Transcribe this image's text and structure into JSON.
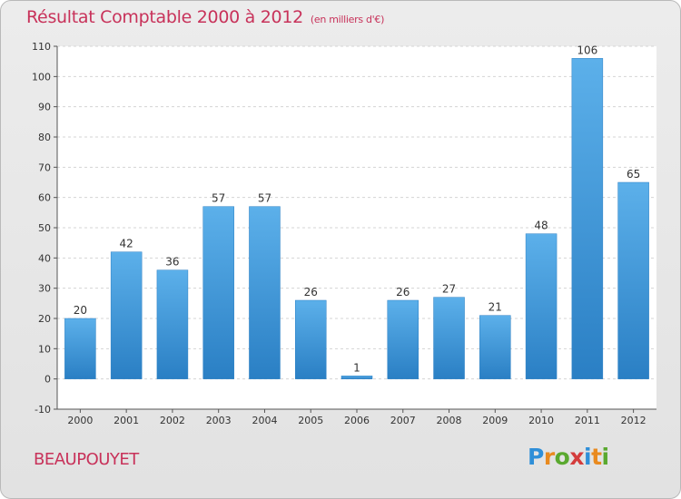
{
  "header": {
    "title": "Résultat Comptable 2000 à 2012",
    "subtitle": "(en milliers d'€)"
  },
  "footer": {
    "commune": "BEAUPOUYET",
    "logo": [
      "P",
      "r",
      "o",
      "x",
      "i",
      "t",
      "i"
    ]
  },
  "colors": {
    "bar": "#4ea3e0",
    "title": "#c8325a"
  },
  "chart_data": {
    "type": "bar",
    "title": "Résultat Comptable 2000 à 2012",
    "categories": [
      "2000",
      "2001",
      "2002",
      "2003",
      "2004",
      "2005",
      "2006",
      "2007",
      "2008",
      "2009",
      "2010",
      "2011",
      "2012"
    ],
    "values": [
      20,
      42,
      36,
      57,
      57,
      26,
      1,
      26,
      27,
      21,
      48,
      106,
      65
    ],
    "ylim": [
      -10,
      110
    ],
    "yticks": [
      -10,
      0,
      10,
      20,
      30,
      40,
      50,
      60,
      70,
      80,
      90,
      100,
      110
    ],
    "grid": true,
    "xlabel": "",
    "ylabel": ""
  }
}
